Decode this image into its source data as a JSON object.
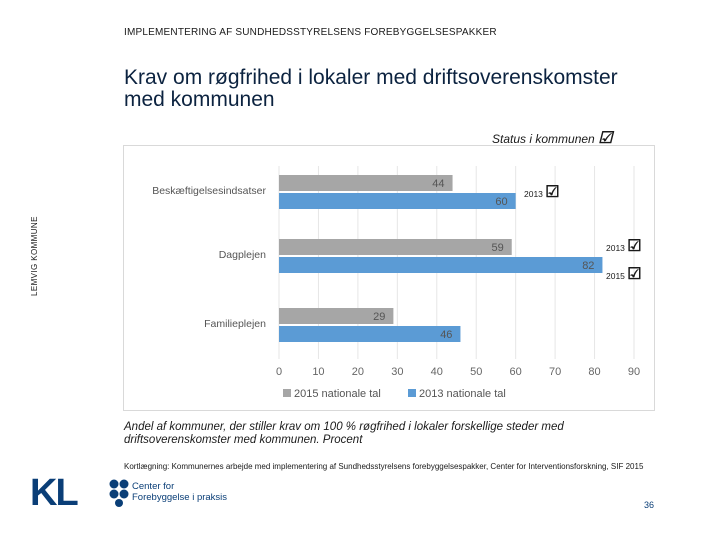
{
  "header": {
    "text": "IMPLEMENTERING AF SUNDHEDSSTYRELSENS FOREBYGGELSESPAKKER"
  },
  "title": "Krav om røgfrihed i lokaler med driftsoverenskomster med kommunen",
  "side_label": "LEMVIG KOMMUNE",
  "status_label": "Status i kommunen",
  "status_years": {
    "beskaeftigelse": "2013",
    "dagplejen_1": "2013",
    "dagplejen_2": "2015"
  },
  "caption": "Andel af kommuner, der stiller krav om 100 % røgfrihed i lokaler forskellige steder med driftsoverenskomster med kommunen. Procent",
  "source": "Kortlægning: Kommunernes arbejde med implementering af Sundhedsstyrelsens forebyggelsespakker, Center for Interventionsforskning, SIF 2015",
  "logo": {
    "kl": "KL",
    "cfp_line1": "Center for",
    "cfp_line2": "Forebyggelse i praksis"
  },
  "page_number": "36",
  "colors": {
    "series_2015": "#a6a6a6",
    "series_2013": "#5b9bd5",
    "title": "#0c2340",
    "brand": "#0a3e77"
  },
  "chart_data": {
    "type": "bar",
    "orientation": "horizontal",
    "categories": [
      "Beskæftigelsesindsatser",
      "Dagplejen",
      "Familieplejen"
    ],
    "series": [
      {
        "name": "2015 nationale tal",
        "values": [
          44,
          59,
          29
        ]
      },
      {
        "name": "2013 nationale tal",
        "values": [
          60,
          82,
          46
        ]
      }
    ],
    "xlim": [
      0,
      90
    ],
    "xticks": [
      "0",
      "10",
      "20",
      "30",
      "40",
      "50",
      "60",
      "70",
      "80",
      "90"
    ],
    "grid": true,
    "legend": "bottom"
  }
}
